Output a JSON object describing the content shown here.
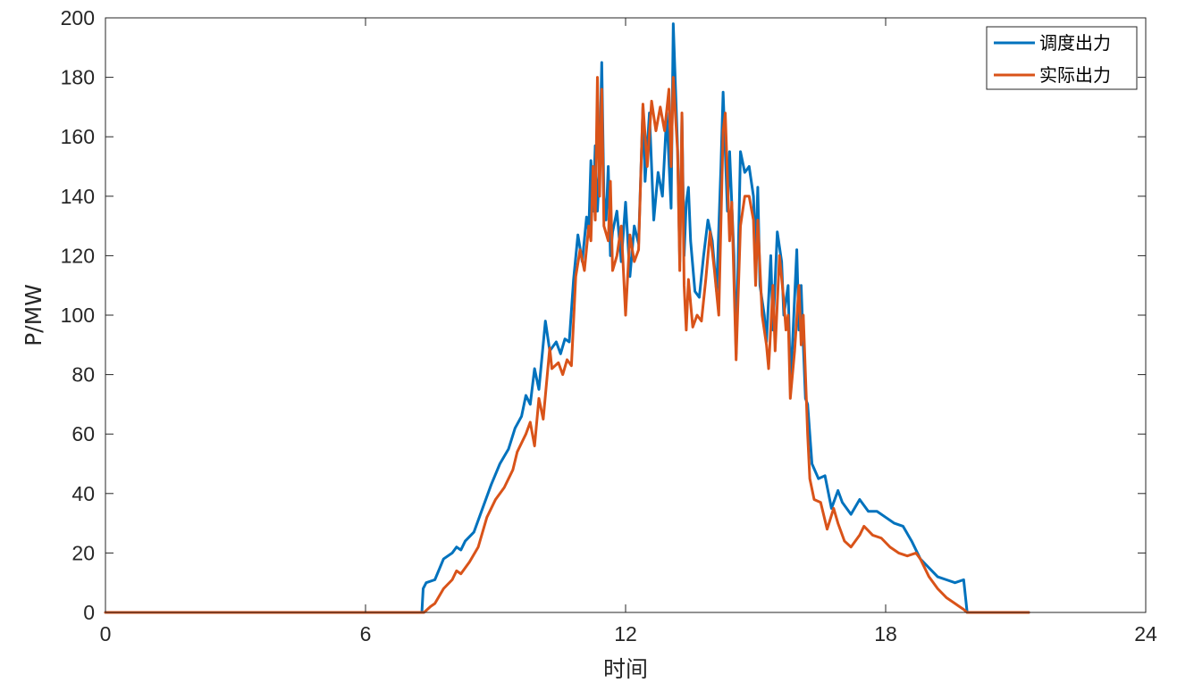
{
  "chart_data": {
    "type": "line",
    "title": "",
    "xlabel": "时间",
    "ylabel": "P/MW",
    "xlim": [
      0,
      24
    ],
    "ylim": [
      0,
      200
    ],
    "xticks": [
      0,
      6,
      12,
      18,
      24
    ],
    "yticks": [
      0,
      20,
      40,
      60,
      80,
      100,
      120,
      140,
      160,
      180,
      200
    ],
    "grid": false,
    "legend_position": "top-right",
    "series": [
      {
        "name": "调度出力",
        "color": "#0072BD",
        "points": [
          [
            0,
            0
          ],
          [
            7.3,
            0
          ],
          [
            7.33,
            8
          ],
          [
            7.4,
            10
          ],
          [
            7.6,
            11
          ],
          [
            7.8,
            18
          ],
          [
            8.0,
            20
          ],
          [
            8.1,
            22
          ],
          [
            8.2,
            21
          ],
          [
            8.3,
            24
          ],
          [
            8.5,
            27
          ],
          [
            8.7,
            35
          ],
          [
            8.9,
            43
          ],
          [
            9.1,
            50
          ],
          [
            9.3,
            55
          ],
          [
            9.45,
            62
          ],
          [
            9.6,
            66
          ],
          [
            9.7,
            73
          ],
          [
            9.8,
            70
          ],
          [
            9.9,
            82
          ],
          [
            10.0,
            75
          ],
          [
            10.15,
            98
          ],
          [
            10.25,
            88
          ],
          [
            10.4,
            91
          ],
          [
            10.5,
            87
          ],
          [
            10.6,
            92
          ],
          [
            10.7,
            91
          ],
          [
            10.8,
            112
          ],
          [
            10.9,
            127
          ],
          [
            11.0,
            118
          ],
          [
            11.1,
            133
          ],
          [
            11.15,
            128
          ],
          [
            11.2,
            152
          ],
          [
            11.25,
            135
          ],
          [
            11.3,
            157
          ],
          [
            11.35,
            135
          ],
          [
            11.4,
            149
          ],
          [
            11.45,
            185
          ],
          [
            11.5,
            140
          ],
          [
            11.55,
            132
          ],
          [
            11.6,
            150
          ],
          [
            11.65,
            120
          ],
          [
            11.7,
            128
          ],
          [
            11.8,
            135
          ],
          [
            11.9,
            118
          ],
          [
            12.0,
            138
          ],
          [
            12.1,
            113
          ],
          [
            12.2,
            130
          ],
          [
            12.3,
            124
          ],
          [
            12.4,
            170
          ],
          [
            12.45,
            145
          ],
          [
            12.55,
            168
          ],
          [
            12.65,
            132
          ],
          [
            12.75,
            148
          ],
          [
            12.85,
            140
          ],
          [
            12.95,
            168
          ],
          [
            13.05,
            136
          ],
          [
            13.1,
            198
          ],
          [
            13.2,
            156
          ],
          [
            13.25,
            118
          ],
          [
            13.3,
            167
          ],
          [
            13.35,
            120
          ],
          [
            13.4,
            138
          ],
          [
            13.45,
            143
          ],
          [
            13.5,
            125
          ],
          [
            13.6,
            108
          ],
          [
            13.7,
            106
          ],
          [
            13.8,
            120
          ],
          [
            13.9,
            132
          ],
          [
            14.0,
            125
          ],
          [
            14.1,
            108
          ],
          [
            14.2,
            150
          ],
          [
            14.25,
            175
          ],
          [
            14.35,
            135
          ],
          [
            14.4,
            155
          ],
          [
            14.5,
            120
          ],
          [
            14.55,
            87
          ],
          [
            14.65,
            155
          ],
          [
            14.75,
            148
          ],
          [
            14.85,
            150
          ],
          [
            14.95,
            140
          ],
          [
            15.0,
            120
          ],
          [
            15.05,
            143
          ],
          [
            15.1,
            110
          ],
          [
            15.2,
            100
          ],
          [
            15.25,
            91
          ],
          [
            15.35,
            120
          ],
          [
            15.4,
            95
          ],
          [
            15.5,
            128
          ],
          [
            15.6,
            118
          ],
          [
            15.65,
            100
          ],
          [
            15.75,
            110
          ],
          [
            15.8,
            78
          ],
          [
            15.85,
            90
          ],
          [
            15.95,
            122
          ],
          [
            16.0,
            95
          ],
          [
            16.05,
            110
          ],
          [
            16.1,
            90
          ],
          [
            16.15,
            72
          ],
          [
            16.2,
            70
          ],
          [
            16.3,
            50
          ],
          [
            16.45,
            45
          ],
          [
            16.6,
            46
          ],
          [
            16.75,
            35
          ],
          [
            16.9,
            41
          ],
          [
            17.0,
            37
          ],
          [
            17.2,
            33
          ],
          [
            17.4,
            38
          ],
          [
            17.6,
            34
          ],
          [
            17.8,
            34
          ],
          [
            18.0,
            32
          ],
          [
            18.2,
            30
          ],
          [
            18.4,
            29
          ],
          [
            18.6,
            24
          ],
          [
            18.8,
            18
          ],
          [
            19.0,
            15
          ],
          [
            19.2,
            12
          ],
          [
            19.4,
            11
          ],
          [
            19.6,
            10
          ],
          [
            19.8,
            11
          ],
          [
            19.88,
            0
          ],
          [
            21.3,
            0
          ]
        ]
      },
      {
        "name": "实际出力",
        "color": "#D95319",
        "points": [
          [
            0,
            0
          ],
          [
            7.35,
            0
          ],
          [
            7.5,
            2
          ],
          [
            7.6,
            3
          ],
          [
            7.8,
            8
          ],
          [
            8.0,
            11
          ],
          [
            8.1,
            14
          ],
          [
            8.2,
            13
          ],
          [
            8.4,
            17
          ],
          [
            8.6,
            22
          ],
          [
            8.8,
            32
          ],
          [
            9.0,
            38
          ],
          [
            9.2,
            42
          ],
          [
            9.4,
            48
          ],
          [
            9.5,
            54
          ],
          [
            9.7,
            60
          ],
          [
            9.8,
            64
          ],
          [
            9.9,
            56
          ],
          [
            10.0,
            72
          ],
          [
            10.1,
            65
          ],
          [
            10.25,
            89
          ],
          [
            10.3,
            82
          ],
          [
            10.45,
            84
          ],
          [
            10.55,
            80
          ],
          [
            10.65,
            85
          ],
          [
            10.75,
            83
          ],
          [
            10.85,
            113
          ],
          [
            10.95,
            122
          ],
          [
            11.05,
            115
          ],
          [
            11.15,
            130
          ],
          [
            11.2,
            125
          ],
          [
            11.25,
            150
          ],
          [
            11.3,
            132
          ],
          [
            11.35,
            180
          ],
          [
            11.4,
            140
          ],
          [
            11.45,
            176
          ],
          [
            11.5,
            130
          ],
          [
            11.6,
            125
          ],
          [
            11.65,
            145
          ],
          [
            11.7,
            115
          ],
          [
            11.8,
            120
          ],
          [
            11.9,
            130
          ],
          [
            12.0,
            100
          ],
          [
            12.1,
            127
          ],
          [
            12.2,
            118
          ],
          [
            12.3,
            122
          ],
          [
            12.4,
            171
          ],
          [
            12.5,
            150
          ],
          [
            12.6,
            172
          ],
          [
            12.7,
            162
          ],
          [
            12.8,
            170
          ],
          [
            12.9,
            162
          ],
          [
            13.0,
            176
          ],
          [
            13.05,
            150
          ],
          [
            13.1,
            180
          ],
          [
            13.2,
            155
          ],
          [
            13.25,
            115
          ],
          [
            13.3,
            168
          ],
          [
            13.35,
            110
          ],
          [
            13.4,
            95
          ],
          [
            13.45,
            112
          ],
          [
            13.55,
            96
          ],
          [
            13.65,
            100
          ],
          [
            13.75,
            98
          ],
          [
            13.85,
            112
          ],
          [
            13.95,
            128
          ],
          [
            14.05,
            115
          ],
          [
            14.15,
            100
          ],
          [
            14.25,
            162
          ],
          [
            14.3,
            168
          ],
          [
            14.4,
            125
          ],
          [
            14.45,
            138
          ],
          [
            14.55,
            85
          ],
          [
            14.65,
            130
          ],
          [
            14.75,
            140
          ],
          [
            14.85,
            140
          ],
          [
            14.95,
            132
          ],
          [
            15.0,
            110
          ],
          [
            15.05,
            132
          ],
          [
            15.15,
            100
          ],
          [
            15.25,
            90
          ],
          [
            15.3,
            82
          ],
          [
            15.4,
            110
          ],
          [
            15.45,
            88
          ],
          [
            15.55,
            120
          ],
          [
            15.65,
            105
          ],
          [
            15.7,
            95
          ],
          [
            15.75,
            100
          ],
          [
            15.8,
            72
          ],
          [
            15.9,
            88
          ],
          [
            16.0,
            110
          ],
          [
            16.05,
            90
          ],
          [
            16.1,
            100
          ],
          [
            16.2,
            60
          ],
          [
            16.25,
            45
          ],
          [
            16.35,
            38
          ],
          [
            16.5,
            37
          ],
          [
            16.65,
            28
          ],
          [
            16.8,
            35
          ],
          [
            16.9,
            30
          ],
          [
            17.05,
            24
          ],
          [
            17.2,
            22
          ],
          [
            17.4,
            26
          ],
          [
            17.5,
            29
          ],
          [
            17.7,
            26
          ],
          [
            17.9,
            25
          ],
          [
            18.1,
            22
          ],
          [
            18.3,
            20
          ],
          [
            18.5,
            19
          ],
          [
            18.7,
            20
          ],
          [
            18.8,
            18
          ],
          [
            19.0,
            12
          ],
          [
            19.2,
            8
          ],
          [
            19.4,
            5
          ],
          [
            19.6,
            3
          ],
          [
            19.7,
            2
          ],
          [
            19.8,
            1
          ],
          [
            19.88,
            0
          ],
          [
            21.3,
            0
          ]
        ]
      }
    ]
  }
}
